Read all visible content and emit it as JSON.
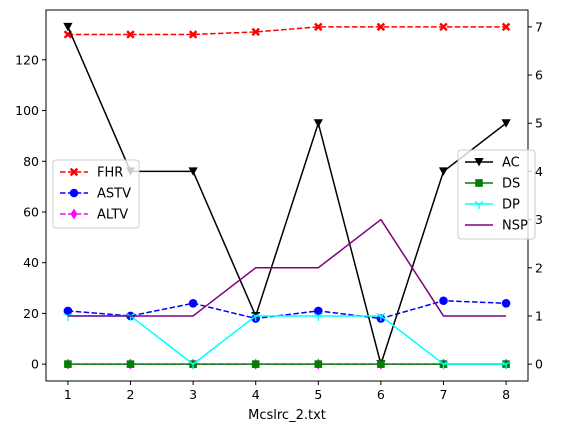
{
  "chart_data": {
    "type": "line",
    "xlabel": "Mcslrc_2.txt",
    "x": [
      1,
      2,
      3,
      4,
      5,
      6,
      7,
      8
    ],
    "xticks": [
      "1",
      "2",
      "3",
      "4",
      "5",
      "6",
      "7",
      "8"
    ],
    "xlim": [
      0.65,
      8.35
    ],
    "left_axis": {
      "ylim": [
        -6.65,
        139.65
      ],
      "ticks": [
        0,
        20,
        40,
        60,
        80,
        100,
        120
      ]
    },
    "right_axis": {
      "ylim": [
        -0.35,
        7.35
      ],
      "ticks": [
        0,
        1,
        2,
        3,
        4,
        5,
        6,
        7
      ]
    },
    "series": [
      {
        "name": "FHR",
        "axis": "left",
        "color": "#ff0000",
        "dash": "dashed",
        "marker": "x-filled",
        "values": [
          130,
          130,
          130,
          131,
          133,
          133,
          133,
          133
        ]
      },
      {
        "name": "ASTV",
        "axis": "left",
        "color": "#0000ff",
        "dash": "dashed",
        "marker": "circle",
        "values": [
          21,
          19,
          24,
          18,
          21,
          18,
          25,
          24
        ]
      },
      {
        "name": "ALTV",
        "axis": "left",
        "color": "#ff00ff",
        "dash": "dashed",
        "marker": "thin-diamond",
        "values": [
          0,
          0,
          0,
          0,
          0,
          0,
          0,
          0
        ]
      },
      {
        "name": "AC",
        "axis": "right",
        "color": "#000000",
        "dash": "solid",
        "marker": "triangle-down",
        "values": [
          7,
          4,
          4,
          1,
          5,
          0,
          4,
          5
        ]
      },
      {
        "name": "DS",
        "axis": "right",
        "color": "#008000",
        "dash": "solid",
        "marker": "square",
        "values": [
          0,
          0,
          0,
          0,
          0,
          0,
          0,
          0
        ]
      },
      {
        "name": "DP",
        "axis": "right",
        "color": "#00ffff",
        "dash": "solid",
        "marker": "tri-down",
        "values": [
          1,
          1,
          0,
          1,
          1,
          1,
          0,
          0
        ]
      },
      {
        "name": "NSP",
        "axis": "right",
        "color": "#800080",
        "dash": "solid",
        "marker": "none",
        "values": [
          1,
          1,
          1,
          2,
          2,
          3,
          1,
          1
        ]
      }
    ],
    "legends": [
      {
        "placement": "center-left",
        "entries": [
          "FHR",
          "ASTV",
          "ALTV"
        ]
      },
      {
        "placement": "center-right",
        "entries": [
          "AC",
          "DS",
          "DP",
          "NSP"
        ]
      }
    ],
    "grid": false
  }
}
